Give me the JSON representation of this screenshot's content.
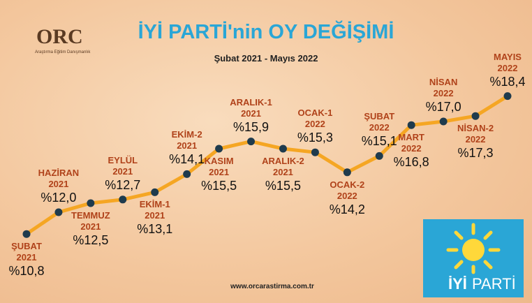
{
  "chart_data": {
    "type": "line",
    "title": "İYİ PARTİ'nin OY DEĞİŞİMİ",
    "subtitle": "Şubat 2021 - Mayıs 2022",
    "footer": "www.orcarastirma.com.tr",
    "brand": "ORC",
    "brand_subtitle": "Araştırma Eğitim Danışmanlık",
    "party_logo": [
      "İYİ",
      "PARTİ"
    ],
    "categories": [
      "ŞUBAT\n2021",
      "HAZİRAN\n2021",
      "TEMMUZ\n2021",
      "EYLÜL\n2021",
      "EKİM-1\n2021",
      "EKİM-2\n2021",
      "KASIM\n2021",
      "ARALIK-1\n2021",
      "ARALIK-2\n2021",
      "OCAK-1\n2022",
      "OCAK-2\n2022",
      "ŞUBAT\n2022",
      "MART\n2022",
      "NİSAN\n2022",
      "NİSAN-2\n2022",
      "MAYIS\n2022"
    ],
    "values": [
      10.8,
      12.0,
      12.5,
      12.7,
      13.1,
      14.1,
      15.5,
      15.9,
      15.5,
      15.3,
      14.2,
      15.1,
      16.8,
      17.0,
      17.3,
      18.4
    ],
    "value_labels": [
      "%10,8",
      "%12,0",
      "%12,5",
      "%12,7",
      "%13,1",
      "%14,1",
      "%15,5",
      "%15,9",
      "%15,5",
      "%15,3",
      "%14,2",
      "%15,1",
      "%16,8",
      "%17,0",
      "%17,3",
      "%18,4"
    ],
    "line_color": "#f5a623",
    "marker_color": "#1f3b4d",
    "ylim": [
      10,
      19
    ]
  }
}
